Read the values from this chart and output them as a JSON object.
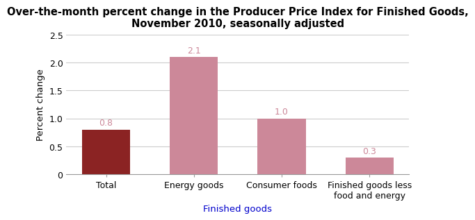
{
  "title": "Over-the-month percent change in the Producer Price Index for Finished Goods,\nNovember 2010, seasonally adjusted",
  "categories": [
    "Total",
    "Energy goods",
    "Consumer foods",
    "Finished goods less\nfood and energy"
  ],
  "values": [
    0.8,
    2.1,
    1.0,
    0.3
  ],
  "bar_colors": [
    "#8B2323",
    "#CC8899",
    "#CC8899",
    "#CC8899"
  ],
  "bar_label_colors": [
    "#CC8899",
    "#CC8899",
    "#CC8899",
    "#CC8899"
  ],
  "xlabel": "Finished goods",
  "ylabel": "Percent change",
  "ylim": [
    0,
    2.5
  ],
  "yticks": [
    0,
    0.5,
    1.0,
    1.5,
    2.0,
    2.5
  ],
  "ytick_labels": [
    "0",
    "0.5",
    "1.0",
    "1.5",
    "2.0",
    "2.5"
  ],
  "xlabel_color": "#0000CC",
  "title_fontsize": 10.5,
  "axis_label_fontsize": 9.5,
  "tick_label_fontsize": 9,
  "bar_label_fontsize": 9,
  "background_color": "#FFFFFF",
  "grid_color": "#CCCCCC",
  "bar_width": 0.55
}
